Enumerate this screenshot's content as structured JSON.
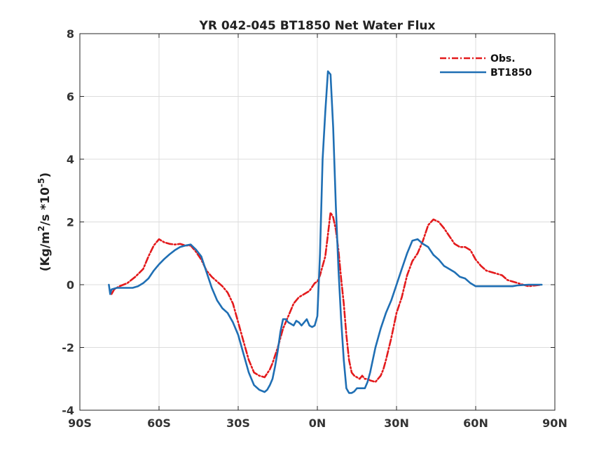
{
  "chart_data": {
    "type": "line",
    "title": "YR 042-045 BT1850  Net Water Flux",
    "ylabel": {
      "prefix": "(Kg/m",
      "sup1": "2",
      "mid": "/s *10",
      "sup2": "-5",
      "suffix": ")"
    },
    "xlabel": "",
    "xlim": [
      -90,
      90
    ],
    "ylim": [
      -4,
      8
    ],
    "x_ticks": [
      {
        "value": -90,
        "label": "90S"
      },
      {
        "value": -60,
        "label": "60S"
      },
      {
        "value": -30,
        "label": "30S"
      },
      {
        "value": 0,
        "label": "0N"
      },
      {
        "value": 30,
        "label": "30N"
      },
      {
        "value": 60,
        "label": "60N"
      },
      {
        "value": 90,
        "label": "90N"
      }
    ],
    "y_ticks": [
      {
        "value": -4,
        "label": "-4"
      },
      {
        "value": -2,
        "label": "-2"
      },
      {
        "value": 0,
        "label": "0"
      },
      {
        "value": 2,
        "label": "2"
      },
      {
        "value": 4,
        "label": "4"
      },
      {
        "value": 6,
        "label": "6"
      },
      {
        "value": 8,
        "label": "8"
      }
    ],
    "grid": true,
    "legend_position": "top-right",
    "series": [
      {
        "name": "Obs.",
        "color": "#e31a1c",
        "style": "dash-dot",
        "x": [
          -78,
          -77,
          -75,
          -72,
          -69,
          -66,
          -64,
          -62,
          -60,
          -58,
          -56,
          -54,
          -52,
          -50,
          -48,
          -46,
          -44,
          -42,
          -40,
          -38,
          -36,
          -34,
          -32,
          -30,
          -28,
          -26,
          -24,
          -22,
          -20,
          -18,
          -17,
          -15,
          -13,
          -11,
          -9,
          -7,
          -5,
          -3,
          -1,
          0,
          1,
          2,
          3,
          4,
          5,
          6,
          7,
          8,
          9,
          10,
          11,
          12,
          13,
          14,
          15,
          16,
          17,
          18,
          19,
          20,
          22,
          24,
          25,
          26,
          28,
          30,
          32,
          34,
          36,
          38,
          40,
          42,
          44,
          46,
          48,
          50,
          52,
          54,
          56,
          58,
          60,
          62,
          64,
          66,
          68,
          70,
          72,
          74,
          76,
          80,
          85
        ],
        "y": [
          -0.3,
          -0.15,
          -0.05,
          0.05,
          0.25,
          0.5,
          0.9,
          1.25,
          1.45,
          1.35,
          1.3,
          1.28,
          1.3,
          1.25,
          1.25,
          1.05,
          0.8,
          0.45,
          0.25,
          0.1,
          -0.05,
          -0.25,
          -0.6,
          -1.2,
          -1.8,
          -2.4,
          -2.8,
          -2.9,
          -2.95,
          -2.7,
          -2.5,
          -2.0,
          -1.4,
          -1.0,
          -0.6,
          -0.4,
          -0.3,
          -0.2,
          0.05,
          0.1,
          0.3,
          0.6,
          0.9,
          1.6,
          2.3,
          2.15,
          1.75,
          1.1,
          0.2,
          -0.6,
          -1.6,
          -2.4,
          -2.8,
          -2.9,
          -2.95,
          -3.0,
          -2.9,
          -3.0,
          -3.0,
          -3.05,
          -3.1,
          -2.9,
          -2.7,
          -2.4,
          -1.7,
          -0.9,
          -0.4,
          0.3,
          0.75,
          1.0,
          1.4,
          1.9,
          2.08,
          2.0,
          1.8,
          1.55,
          1.3,
          1.2,
          1.2,
          1.1,
          0.8,
          0.6,
          0.45,
          0.4,
          0.35,
          0.3,
          0.15,
          0.1,
          0.05,
          -0.05,
          0.0
        ]
      },
      {
        "name": "BT1850",
        "color": "#1f6fb4",
        "style": "solid",
        "x": [
          -79,
          -78.5,
          -78,
          -76,
          -74,
          -72,
          -70,
          -68,
          -66,
          -64,
          -62,
          -60,
          -58,
          -56,
          -54,
          -52,
          -50,
          -48,
          -46,
          -44,
          -42,
          -40,
          -38,
          -36,
          -34,
          -32,
          -30,
          -28,
          -26,
          -24,
          -22,
          -20,
          -19,
          -18,
          -17,
          -16,
          -15,
          -14,
          -13,
          -12,
          -11,
          -10,
          -9,
          -8,
          -7,
          -6,
          -5,
          -4,
          -3,
          -2,
          -1,
          0,
          1,
          2,
          3,
          4,
          5,
          6,
          7,
          8,
          9,
          10,
          11,
          12,
          13,
          14,
          15,
          16,
          17,
          18,
          19,
          20,
          22,
          24,
          26,
          28,
          30,
          32,
          34,
          36,
          38,
          40,
          42,
          44,
          46,
          48,
          50,
          52,
          54,
          56,
          58,
          60,
          62,
          64,
          66,
          68,
          70,
          72,
          74,
          76,
          80,
          85
        ],
        "y": [
          0.0,
          -0.3,
          -0.15,
          -0.1,
          -0.1,
          -0.1,
          -0.1,
          -0.05,
          0.05,
          0.2,
          0.45,
          0.65,
          0.82,
          0.97,
          1.1,
          1.2,
          1.25,
          1.28,
          1.12,
          0.9,
          0.4,
          -0.1,
          -0.5,
          -0.75,
          -0.9,
          -1.2,
          -1.6,
          -2.2,
          -2.8,
          -3.2,
          -3.35,
          -3.42,
          -3.35,
          -3.2,
          -3.0,
          -2.6,
          -2.1,
          -1.5,
          -1.1,
          -1.1,
          -1.2,
          -1.25,
          -1.3,
          -1.15,
          -1.2,
          -1.3,
          -1.2,
          -1.1,
          -1.3,
          -1.35,
          -1.3,
          -1.0,
          1.0,
          4.0,
          5.5,
          6.8,
          6.7,
          5.0,
          2.5,
          0.5,
          -1.1,
          -2.4,
          -3.3,
          -3.45,
          -3.45,
          -3.4,
          -3.3,
          -3.3,
          -3.3,
          -3.3,
          -3.1,
          -2.8,
          -2.0,
          -1.4,
          -0.9,
          -0.5,
          0.0,
          0.5,
          1.0,
          1.4,
          1.45,
          1.3,
          1.2,
          0.95,
          0.8,
          0.6,
          0.5,
          0.4,
          0.25,
          0.2,
          0.05,
          -0.05,
          -0.05,
          -0.05,
          -0.05,
          -0.05,
          -0.05,
          -0.05,
          -0.05,
          -0.02,
          0.0,
          0.0
        ]
      }
    ]
  }
}
